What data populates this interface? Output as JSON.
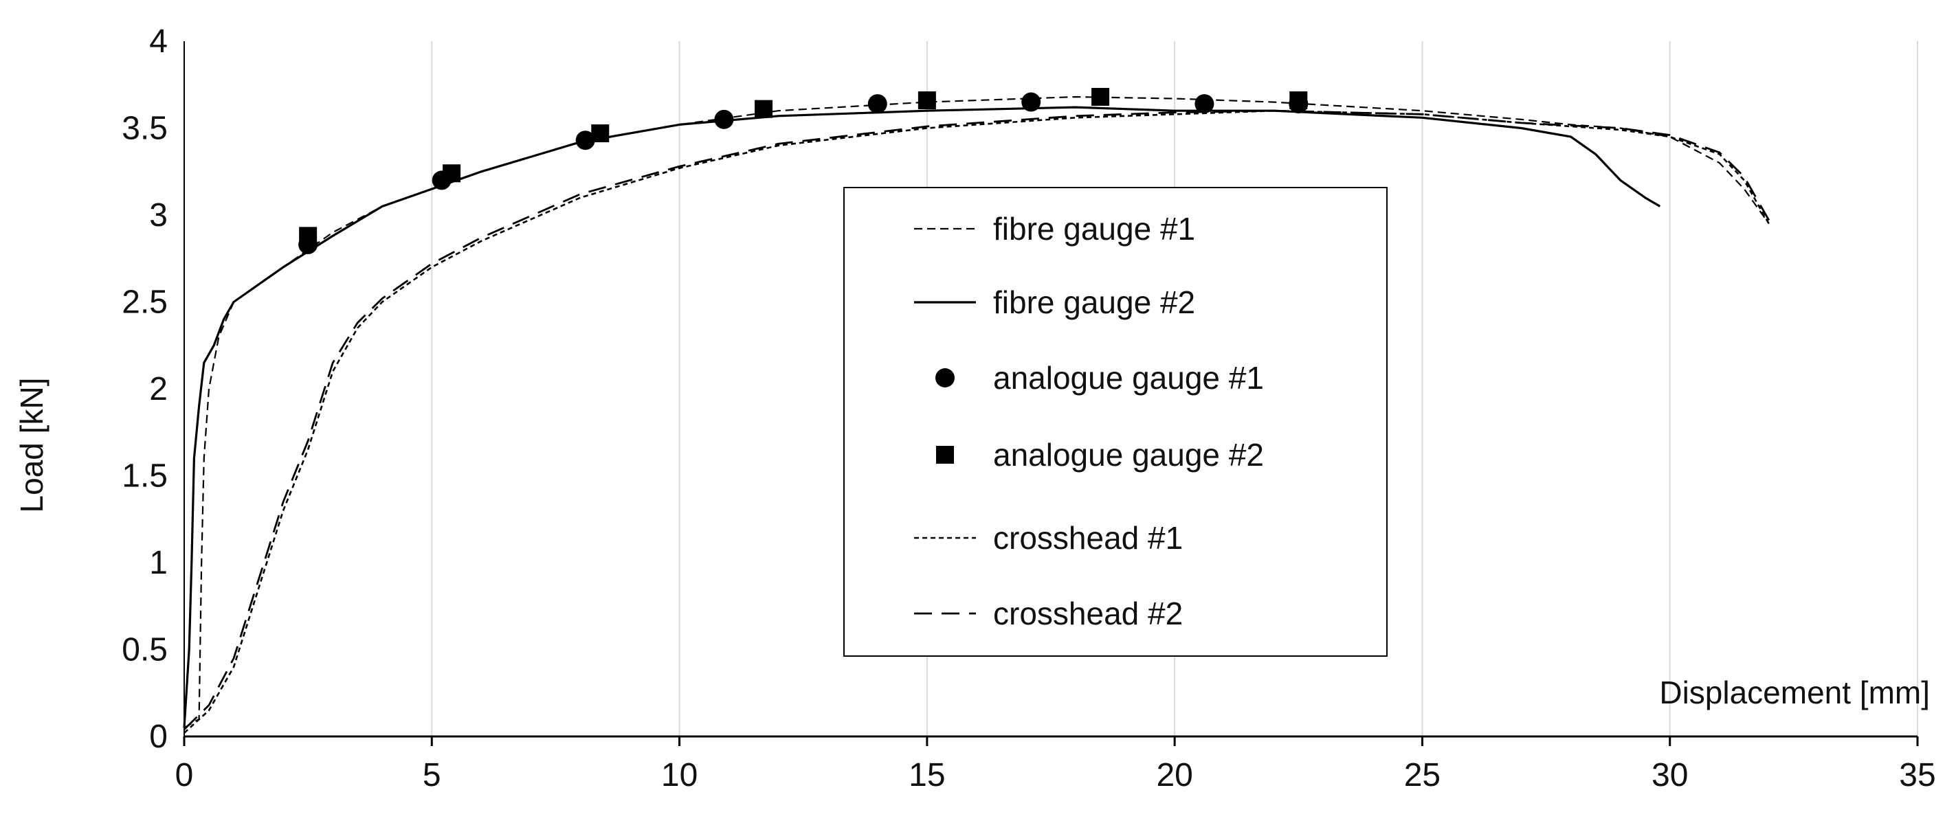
{
  "chart_data": {
    "type": "line",
    "title": "",
    "xlabel": "Displacement [mm]",
    "ylabel": "Load [kN]",
    "xlim": [
      0,
      35
    ],
    "ylim": [
      0,
      4
    ],
    "xticks": [
      0,
      5,
      10,
      15,
      20,
      25,
      30,
      35
    ],
    "yticks": [
      0,
      0.5,
      1,
      1.5,
      2,
      2.5,
      3,
      3.5,
      4
    ],
    "xtick_labels": [
      "0",
      "5",
      "10",
      "15",
      "20",
      "25",
      "30",
      "35"
    ],
    "ytick_labels": [
      "0",
      "0.5",
      "1",
      "1.5",
      "2",
      "2.5",
      "3",
      "3.5",
      "4"
    ],
    "grid": {
      "vertical": true,
      "horizontal": false
    },
    "legend_position": "center",
    "colors": {
      "ink": "#000000",
      "grid": "#d9d9d9"
    },
    "series": [
      {
        "name": "fibre gauge #1",
        "kind": "line",
        "style": "fine-dash",
        "x": [
          0,
          0.3,
          0.35,
          0.4,
          0.5,
          0.7,
          1,
          1.5,
          2,
          3,
          4,
          5,
          6,
          8,
          10,
          12,
          15,
          18,
          20,
          22,
          25,
          27,
          28,
          29,
          30,
          31,
          31.5,
          32
        ],
        "y": [
          0.05,
          0.1,
          1.0,
          1.6,
          2.0,
          2.3,
          2.5,
          2.6,
          2.7,
          2.9,
          3.05,
          3.15,
          3.25,
          3.42,
          3.52,
          3.6,
          3.65,
          3.68,
          3.67,
          3.65,
          3.6,
          3.55,
          3.52,
          3.5,
          3.45,
          3.3,
          3.15,
          2.95
        ]
      },
      {
        "name": "fibre gauge #2",
        "kind": "line",
        "style": "solid",
        "x": [
          0,
          0.1,
          0.15,
          0.2,
          0.3,
          0.4,
          0.6,
          0.8,
          1,
          1.5,
          2,
          3,
          4,
          5,
          6,
          8,
          10,
          12,
          15,
          18,
          20,
          22,
          25,
          27,
          28,
          28.5,
          29,
          29.5,
          29.8
        ],
        "y": [
          0.05,
          0.5,
          1.0,
          1.6,
          1.9,
          2.15,
          2.25,
          2.4,
          2.5,
          2.6,
          2.7,
          2.88,
          3.05,
          3.15,
          3.25,
          3.42,
          3.52,
          3.57,
          3.6,
          3.62,
          3.6,
          3.6,
          3.56,
          3.5,
          3.45,
          3.35,
          3.2,
          3.1,
          3.05
        ]
      },
      {
        "name": "analogue gauge #1",
        "kind": "scatter",
        "marker": "circle",
        "x": [
          2.5,
          5.2,
          8.1,
          10.9,
          14,
          17.1,
          20.6,
          22.5
        ],
        "y": [
          2.83,
          3.2,
          3.43,
          3.55,
          3.64,
          3.65,
          3.64,
          3.64
        ]
      },
      {
        "name": "analogue gauge #2",
        "kind": "scatter",
        "marker": "square",
        "x": [
          2.5,
          5.4,
          8.4,
          11.7,
          15,
          18.5,
          22.5
        ],
        "y": [
          2.88,
          3.24,
          3.47,
          3.61,
          3.66,
          3.68,
          3.66
        ]
      },
      {
        "name": "crosshead #1",
        "kind": "line",
        "style": "short-dash",
        "x": [
          0,
          0.5,
          1,
          1.5,
          2,
          2.5,
          3,
          3.5,
          4,
          5,
          6,
          8,
          10,
          12,
          15,
          18,
          20,
          22,
          25,
          27,
          29,
          30,
          31,
          31.5,
          32
        ],
        "y": [
          0.02,
          0.15,
          0.4,
          0.85,
          1.3,
          1.65,
          2.1,
          2.35,
          2.5,
          2.7,
          2.85,
          3.1,
          3.27,
          3.4,
          3.5,
          3.56,
          3.58,
          3.6,
          3.58,
          3.53,
          3.49,
          3.45,
          3.35,
          3.2,
          2.95
        ]
      },
      {
        "name": "crosshead #2",
        "kind": "line",
        "style": "long-dash",
        "x": [
          0,
          0.5,
          1,
          1.5,
          2,
          2.5,
          3,
          3.5,
          4,
          5,
          6,
          8,
          10,
          12,
          15,
          18,
          20,
          22,
          25,
          27,
          29,
          30,
          31,
          31.5,
          32
        ],
        "y": [
          0.04,
          0.18,
          0.45,
          0.9,
          1.35,
          1.7,
          2.15,
          2.38,
          2.52,
          2.72,
          2.87,
          3.12,
          3.28,
          3.41,
          3.51,
          3.57,
          3.59,
          3.6,
          3.58,
          3.53,
          3.5,
          3.46,
          3.36,
          3.22,
          2.97
        ]
      }
    ]
  }
}
